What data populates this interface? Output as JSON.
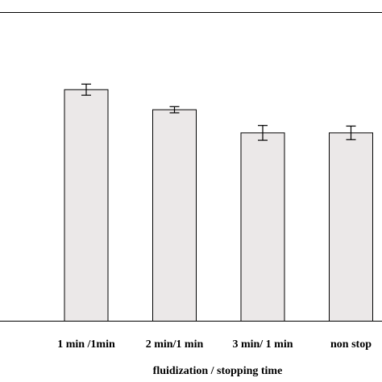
{
  "chart_data": {
    "type": "bar",
    "categories": [
      "1 min /1min",
      "2 min/1 min",
      "3 min/ 1 min",
      "non stop"
    ],
    "values": [
      0.75,
      0.685,
      0.61,
      0.61
    ],
    "errors": [
      0.018,
      0.01,
      0.024,
      0.022
    ],
    "xlabel": "fluidization / stopping time",
    "ylabel": "",
    "ylim": [
      0,
      1
    ],
    "grid": false,
    "bar_color": "#ebe8e8",
    "edge_color": "#000000"
  }
}
